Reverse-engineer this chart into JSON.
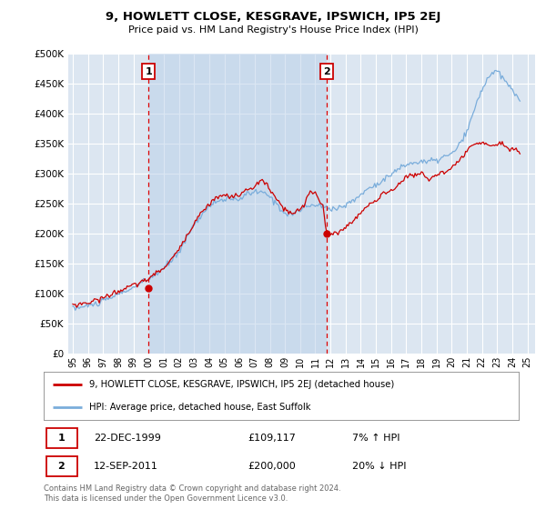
{
  "title": "9, HOWLETT CLOSE, KESGRAVE, IPSWICH, IP5 2EJ",
  "subtitle": "Price paid vs. HM Land Registry's House Price Index (HPI)",
  "background_color": "#ffffff",
  "plot_bg_color": "#dce6f1",
  "grid_color": "#ffffff",
  "ylim": [
    0,
    500000
  ],
  "yticks": [
    0,
    50000,
    100000,
    150000,
    200000,
    250000,
    300000,
    350000,
    400000,
    450000,
    500000
  ],
  "ytick_labels": [
    "£0",
    "£50K",
    "£100K",
    "£150K",
    "£200K",
    "£250K",
    "£300K",
    "£350K",
    "£400K",
    "£450K",
    "£500K"
  ],
  "xlabel_years": [
    1995,
    1996,
    1997,
    1998,
    1999,
    2000,
    2001,
    2002,
    2003,
    2004,
    2005,
    2006,
    2007,
    2008,
    2009,
    2010,
    2011,
    2012,
    2013,
    2014,
    2015,
    2016,
    2017,
    2018,
    2019,
    2020,
    2021,
    2022,
    2023,
    2024,
    2025
  ],
  "sale1_x": 2000.0,
  "sale1_y": 109117,
  "sale1_label": "1",
  "sale1_date": "22-DEC-1999",
  "sale1_price": "£109,117",
  "sale1_hpi": "7% ↑ HPI",
  "sale2_x": 2011.75,
  "sale2_y": 200000,
  "sale2_label": "2",
  "sale2_date": "12-SEP-2011",
  "sale2_price": "£200,000",
  "sale2_hpi": "20% ↓ HPI",
  "red_line_color": "#cc0000",
  "blue_line_color": "#7aaddb",
  "sale_dot_color": "#cc0000",
  "vline_color": "#dd0000",
  "legend_label_red": "9, HOWLETT CLOSE, KESGRAVE, IPSWICH, IP5 2EJ (detached house)",
  "legend_label_blue": "HPI: Average price, detached house, East Suffolk",
  "footnote": "Contains HM Land Registry data © Crown copyright and database right 2024.\nThis data is licensed under the Open Government Licence v3.0.",
  "xlim_left": 1994.7,
  "xlim_right": 2025.5
}
